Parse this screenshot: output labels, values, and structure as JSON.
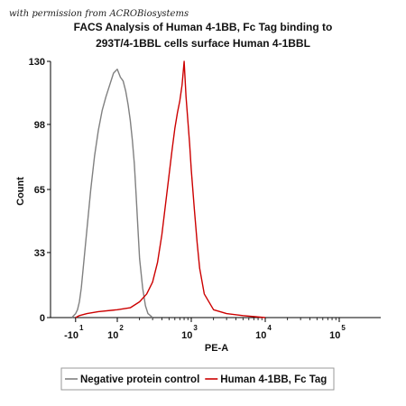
{
  "watermark": "with permission from ACROBiosystems",
  "chart_data": {
    "type": "line",
    "title_lines": [
      "FACS Analysis of  Human 4-1BB, Fc Tag binding to",
      "293T/4-1BBL cells surface Human 4-1BBL"
    ],
    "xlabel": "PE-A",
    "ylabel": "Count",
    "y_ticks": [
      "0",
      "33",
      "65",
      "98",
      "130"
    ],
    "ylim": [
      0,
      130
    ],
    "x_ticks": [
      {
        "base": "-10",
        "exp": "1"
      },
      {
        "base": "10",
        "exp": "2"
      },
      {
        "base": "10",
        "exp": "3"
      },
      {
        "base": "10",
        "exp": "4"
      },
      {
        "base": "10",
        "exp": "5"
      }
    ],
    "x_scale": "biexponential",
    "legend": {
      "placement": "bottom",
      "entries": [
        "Negative protein control",
        "Human 4-1BB, Fc Tag"
      ]
    },
    "series": [
      {
        "name": "Negative protein control",
        "color": "#808080",
        "x": [
          -20,
          -10,
          -5,
          0,
          5,
          10,
          20,
          30,
          40,
          50,
          60,
          70,
          80,
          90,
          100,
          110,
          120,
          130,
          140,
          150,
          160,
          170,
          180,
          190,
          200,
          220,
          240,
          260,
          280,
          300
        ],
        "y": [
          0,
          2,
          4,
          8,
          15,
          25,
          45,
          65,
          82,
          95,
          105,
          112,
          118,
          124,
          126,
          122,
          120,
          115,
          108,
          100,
          90,
          78,
          62,
          45,
          30,
          15,
          6,
          2,
          1,
          0
        ]
      },
      {
        "name": "Human 4-1BB, Fc Tag",
        "color": "#cc0000",
        "x": [
          -10,
          0,
          20,
          50,
          100,
          150,
          200,
          250,
          300,
          350,
          400,
          450,
          500,
          550,
          600,
          650,
          700,
          750,
          800,
          850,
          900,
          950,
          1000,
          1100,
          1200,
          1300,
          1500,
          2000,
          3000,
          5000,
          10000
        ],
        "y": [
          0,
          1,
          2,
          3,
          4,
          5,
          8,
          12,
          18,
          28,
          42,
          58,
          72,
          85,
          96,
          104,
          110,
          118,
          130,
          112,
          100,
          88,
          75,
          55,
          38,
          25,
          12,
          4,
          2,
          1,
          0
        ]
      }
    ]
  }
}
